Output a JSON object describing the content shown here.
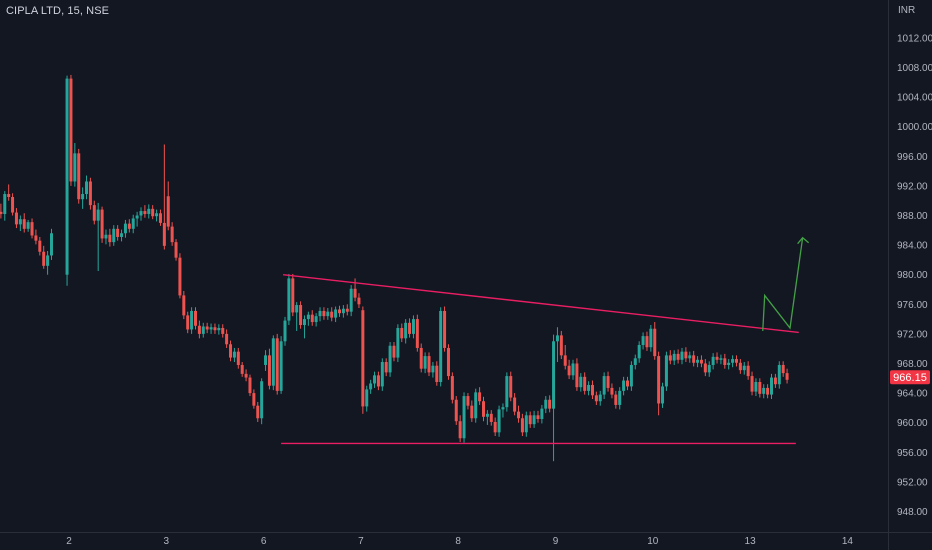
{
  "header": {
    "title": "CIPLA LTD, 15, NSE",
    "currency": "INR"
  },
  "colors": {
    "background": "#131722",
    "up": "#26a69a",
    "down": "#ef5350",
    "trendline": "#e91e63",
    "arrow": "#43a047",
    "axis_text": "#b2b5be",
    "price_tag": "#f23645"
  },
  "last_price": {
    "value": 966.15,
    "label": "966.15"
  },
  "chart_data": {
    "type": "candlestick",
    "title": "CIPLA LTD, 15, NSE",
    "ylim": [
      945.5,
      1015.5
    ],
    "y_ticks": [
      "948.00",
      "952.00",
      "956.00",
      "960.00",
      "964.00",
      "968.00",
      "972.00",
      "976.00",
      "980.00",
      "984.00",
      "988.00",
      "992.00",
      "996.00",
      "1000.00",
      "1004.00",
      "1008.00",
      "1012.00"
    ],
    "x_ticks": [
      "2",
      "3",
      "6",
      "7",
      "8",
      "9",
      "10",
      "13",
      "14"
    ],
    "x_range_sessions": [
      -0.7,
      7.95
    ],
    "bars_per_session": 25,
    "candles": [
      [
        -0.7,
        988.5,
        989.6,
        987.6,
        988.2
      ],
      [
        -0.66,
        988.2,
        991.3,
        987.3,
        990.9
      ],
      [
        -0.62,
        990.9,
        992.2,
        990.0,
        990.5
      ],
      [
        -0.58,
        990.5,
        991.0,
        988.0,
        988.4
      ],
      [
        -0.54,
        988.4,
        989.0,
        986.3,
        986.8
      ],
      [
        -0.5,
        986.8,
        988.0,
        985.9,
        987.5
      ],
      [
        -0.46,
        987.5,
        988.3,
        985.7,
        986.2
      ],
      [
        -0.42,
        986.2,
        987.4,
        985.8,
        987.1
      ],
      [
        -0.38,
        987.1,
        987.6,
        984.9,
        985.3
      ],
      [
        -0.34,
        985.3,
        986.1,
        984.1,
        984.6
      ],
      [
        -0.3,
        984.6,
        985.1,
        982.6,
        983.1
      ],
      [
        -0.26,
        983.1,
        983.9,
        980.8,
        981.2
      ],
      [
        -0.22,
        981.2,
        983.2,
        980.0,
        982.6
      ],
      [
        -0.18,
        982.6,
        986.2,
        982.0,
        985.6
      ],
      [
        -0.02,
        980.0,
        1006.9,
        978.5,
        1006.5
      ],
      [
        0.02,
        1006.5,
        1007.0,
        992.0,
        992.6
      ],
      [
        0.06,
        992.6,
        997.8,
        991.9,
        996.4
      ],
      [
        0.1,
        996.4,
        997.0,
        989.6,
        990.2
      ],
      [
        0.14,
        990.2,
        991.8,
        988.9,
        990.9
      ],
      [
        0.18,
        990.9,
        993.4,
        990.2,
        992.6
      ],
      [
        0.22,
        992.6,
        993.1,
        988.8,
        989.4
      ],
      [
        0.26,
        989.4,
        990.0,
        986.8,
        987.3
      ],
      [
        0.3,
        987.3,
        989.7,
        980.5,
        988.8
      ],
      [
        0.34,
        988.8,
        989.2,
        984.3,
        984.9
      ],
      [
        0.38,
        984.9,
        986.1,
        984.1,
        985.4
      ],
      [
        0.42,
        985.4,
        986.2,
        983.8,
        984.4
      ],
      [
        0.46,
        984.4,
        986.7,
        983.9,
        986.2
      ],
      [
        0.5,
        986.2,
        986.7,
        984.6,
        985.1
      ],
      [
        0.54,
        985.1,
        986.1,
        984.5,
        985.6
      ],
      [
        0.58,
        985.6,
        987.4,
        985.0,
        986.9
      ],
      [
        0.62,
        986.9,
        987.5,
        985.7,
        986.2
      ],
      [
        0.66,
        986.2,
        988.1,
        985.6,
        987.6
      ],
      [
        0.7,
        987.6,
        988.5,
        986.5,
        988.0
      ],
      [
        0.74,
        988.0,
        989.1,
        987.3,
        988.6
      ],
      [
        0.78,
        988.6,
        989.4,
        987.7,
        988.2
      ],
      [
        0.82,
        988.2,
        989.5,
        987.6,
        988.9
      ],
      [
        0.86,
        988.9,
        989.4,
        987.5,
        987.9
      ],
      [
        0.9,
        987.9,
        988.8,
        987.2,
        988.3
      ],
      [
        0.94,
        988.3,
        988.8,
        986.6,
        987.0
      ],
      [
        0.98,
        987.0,
        997.6,
        983.4,
        983.9
      ],
      [
        1.02,
        990.6,
        992.6,
        986.0,
        986.5
      ],
      [
        1.06,
        986.5,
        987.1,
        983.9,
        984.4
      ],
      [
        1.1,
        984.4,
        984.8,
        981.9,
        982.3
      ],
      [
        1.14,
        982.3,
        982.9,
        976.8,
        977.2
      ],
      [
        1.18,
        977.2,
        977.8,
        974.0,
        974.5
      ],
      [
        1.22,
        974.5,
        975.0,
        972.1,
        972.6
      ],
      [
        1.26,
        972.6,
        975.6,
        972.0,
        975.1
      ],
      [
        1.3,
        975.1,
        975.6,
        972.6,
        973.1
      ],
      [
        1.34,
        973.1,
        973.8,
        971.4,
        972.0
      ],
      [
        1.38,
        972.0,
        973.5,
        971.5,
        973.0
      ],
      [
        1.42,
        973.0,
        973.5,
        972.1,
        972.6
      ],
      [
        1.46,
        972.6,
        973.4,
        972.0,
        972.9
      ],
      [
        1.5,
        972.9,
        973.4,
        972.0,
        972.5
      ],
      [
        1.54,
        972.5,
        973.3,
        971.9,
        972.8
      ],
      [
        1.58,
        972.8,
        973.3,
        971.5,
        972.0
      ],
      [
        1.62,
        972.0,
        972.6,
        970.1,
        970.6
      ],
      [
        1.66,
        970.6,
        971.1,
        968.3,
        968.8
      ],
      [
        1.7,
        968.8,
        970.1,
        968.2,
        969.6
      ],
      [
        1.74,
        969.6,
        970.1,
        967.3,
        967.8
      ],
      [
        1.78,
        967.8,
        968.2,
        966.2,
        966.6
      ],
      [
        1.82,
        966.6,
        967.2,
        965.6,
        966.1
      ],
      [
        1.86,
        966.1,
        966.5,
        963.6,
        964.0
      ],
      [
        1.9,
        964.0,
        964.5,
        961.9,
        962.3
      ],
      [
        1.94,
        962.3,
        962.8,
        960.1,
        960.6
      ],
      [
        1.98,
        960.6,
        966.0,
        959.8,
        965.6
      ],
      [
        2.02,
        967.8,
        969.8,
        967.0,
        969.1
      ],
      [
        2.06,
        969.1,
        970.0,
        964.5,
        965.0
      ],
      [
        2.1,
        965.0,
        971.8,
        964.4,
        971.4
      ],
      [
        2.14,
        971.4,
        972.0,
        963.8,
        964.3
      ],
      [
        2.18,
        964.3,
        971.7,
        963.9,
        971.0
      ],
      [
        2.22,
        971.0,
        974.3,
        970.4,
        973.8
      ],
      [
        2.26,
        973.8,
        980.1,
        973.2,
        979.5
      ],
      [
        2.3,
        979.5,
        980.1,
        974.4,
        974.9
      ],
      [
        2.34,
        974.9,
        976.3,
        972.4,
        975.9
      ],
      [
        2.38,
        975.9,
        976.4,
        972.7,
        973.2
      ],
      [
        2.42,
        973.2,
        974.5,
        971.4,
        974.0
      ],
      [
        2.46,
        974.0,
        975.0,
        973.1,
        974.6
      ],
      [
        2.5,
        974.6,
        975.2,
        973.1,
        973.6
      ],
      [
        2.54,
        973.6,
        974.8,
        973.0,
        974.4
      ],
      [
        2.58,
        974.4,
        975.6,
        973.7,
        975.1
      ],
      [
        2.62,
        975.1,
        975.6,
        973.9,
        974.4
      ],
      [
        2.66,
        974.4,
        975.5,
        973.9,
        975.0
      ],
      [
        2.7,
        975.0,
        975.6,
        973.7,
        974.2
      ],
      [
        2.74,
        974.2,
        975.7,
        973.6,
        975.3
      ],
      [
        2.78,
        975.3,
        975.8,
        974.3,
        974.8
      ],
      [
        2.82,
        974.8,
        975.9,
        974.2,
        975.4
      ],
      [
        2.86,
        975.4,
        976.0,
        974.5,
        975.0
      ],
      [
        2.9,
        975.0,
        978.6,
        974.4,
        978.1
      ],
      [
        2.94,
        978.1,
        979.5,
        976.4,
        976.9
      ],
      [
        2.98,
        976.9,
        977.5,
        975.5,
        976.0
      ],
      [
        3.02,
        975.2,
        975.7,
        961.2,
        962.2
      ],
      [
        3.06,
        962.2,
        965.0,
        961.5,
        964.5
      ],
      [
        3.1,
        964.5,
        965.8,
        963.9,
        965.3
      ],
      [
        3.14,
        965.3,
        966.9,
        964.7,
        966.4
      ],
      [
        3.18,
        966.4,
        966.9,
        964.4,
        964.9
      ],
      [
        3.22,
        964.9,
        968.7,
        964.3,
        968.2
      ],
      [
        3.26,
        968.2,
        968.7,
        966.3,
        966.8
      ],
      [
        3.3,
        966.8,
        970.9,
        966.2,
        970.4
      ],
      [
        3.34,
        970.4,
        970.9,
        968.3,
        968.8
      ],
      [
        3.38,
        968.8,
        973.3,
        968.2,
        972.8
      ],
      [
        3.42,
        972.8,
        973.4,
        970.9,
        971.4
      ],
      [
        3.46,
        971.4,
        974.0,
        970.7,
        973.5
      ],
      [
        3.5,
        973.5,
        974.1,
        971.5,
        972.0
      ],
      [
        3.54,
        972.0,
        974.5,
        971.4,
        974.0
      ],
      [
        3.58,
        974.0,
        974.6,
        969.6,
        970.1
      ],
      [
        3.62,
        970.1,
        970.7,
        966.8,
        967.3
      ],
      [
        3.66,
        967.3,
        969.5,
        966.7,
        969.0
      ],
      [
        3.7,
        969.0,
        969.5,
        966.3,
        966.8
      ],
      [
        3.74,
        966.8,
        968.2,
        966.1,
        967.7
      ],
      [
        3.78,
        967.7,
        968.3,
        965.0,
        965.5
      ],
      [
        3.82,
        965.5,
        975.6,
        964.9,
        975.1
      ],
      [
        3.86,
        975.1,
        975.7,
        969.6,
        970.1
      ],
      [
        3.9,
        970.1,
        970.6,
        965.8,
        966.3
      ],
      [
        3.94,
        966.3,
        966.8,
        962.6,
        963.1
      ],
      [
        3.98,
        963.1,
        963.6,
        959.7,
        960.2
      ],
      [
        4.02,
        960.2,
        961.0,
        957.4,
        957.9
      ],
      [
        4.06,
        957.9,
        964.1,
        957.3,
        963.6
      ],
      [
        4.1,
        963.6,
        964.0,
        961.8,
        962.3
      ],
      [
        4.14,
        962.3,
        963.0,
        960.1,
        960.6
      ],
      [
        4.18,
        960.6,
        964.6,
        960.0,
        964.1
      ],
      [
        4.22,
        964.1,
        964.8,
        962.4,
        962.9
      ],
      [
        4.26,
        962.9,
        963.5,
        960.2,
        960.8
      ],
      [
        4.3,
        960.8,
        961.7,
        959.7,
        961.2
      ],
      [
        4.34,
        961.2,
        961.7,
        959.6,
        960.1
      ],
      [
        4.38,
        960.1,
        960.7,
        958.2,
        958.7
      ],
      [
        4.42,
        958.7,
        962.3,
        958.1,
        961.8
      ],
      [
        4.46,
        961.8,
        962.6,
        960.7,
        962.1
      ],
      [
        4.5,
        962.1,
        966.8,
        961.5,
        966.3
      ],
      [
        4.54,
        966.3,
        966.9,
        962.9,
        963.4
      ],
      [
        4.58,
        963.4,
        964.0,
        961.0,
        961.5
      ],
      [
        4.62,
        961.5,
        962.3,
        960.0,
        960.6
      ],
      [
        4.66,
        960.6,
        961.2,
        958.2,
        958.7
      ],
      [
        4.7,
        958.7,
        961.5,
        958.1,
        961.0
      ],
      [
        4.74,
        961.0,
        961.5,
        959.3,
        959.8
      ],
      [
        4.78,
        959.8,
        961.6,
        959.3,
        961.0
      ],
      [
        4.82,
        961.0,
        961.6,
        960.0,
        960.5
      ],
      [
        4.86,
        960.5,
        962.4,
        959.9,
        961.9
      ],
      [
        4.9,
        961.9,
        963.6,
        961.3,
        963.1
      ],
      [
        4.94,
        963.1,
        963.7,
        961.4,
        961.9
      ],
      [
        4.98,
        961.9,
        971.9,
        954.8,
        971.0
      ],
      [
        5.02,
        971.0,
        972.9,
        968.2,
        971.8
      ],
      [
        5.06,
        971.8,
        972.4,
        968.6,
        969.1
      ],
      [
        5.1,
        969.1,
        970.5,
        967.2,
        967.7
      ],
      [
        5.14,
        967.7,
        968.5,
        965.9,
        966.4
      ],
      [
        5.18,
        966.4,
        968.5,
        965.8,
        968.0
      ],
      [
        5.22,
        968.0,
        968.7,
        964.3,
        964.8
      ],
      [
        5.26,
        964.8,
        966.7,
        964.2,
        966.2
      ],
      [
        5.3,
        966.2,
        966.8,
        963.8,
        964.3
      ],
      [
        5.34,
        964.3,
        965.6,
        963.7,
        965.1
      ],
      [
        5.38,
        965.1,
        965.7,
        963.2,
        963.7
      ],
      [
        5.42,
        963.7,
        964.2,
        962.4,
        962.9
      ],
      [
        5.46,
        962.9,
        964.3,
        962.3,
        963.8
      ],
      [
        5.5,
        963.8,
        966.8,
        963.2,
        966.3
      ],
      [
        5.54,
        966.3,
        966.9,
        964.2,
        964.7
      ],
      [
        5.58,
        964.7,
        965.3,
        963.3,
        963.8
      ],
      [
        5.62,
        963.8,
        964.3,
        961.9,
        962.4
      ],
      [
        5.66,
        962.4,
        964.8,
        961.8,
        964.3
      ],
      [
        5.7,
        964.3,
        966.2,
        963.7,
        965.7
      ],
      [
        5.74,
        965.7,
        966.2,
        964.4,
        964.9
      ],
      [
        5.78,
        964.9,
        968.3,
        964.3,
        967.8
      ],
      [
        5.82,
        967.8,
        969.2,
        967.2,
        968.7
      ],
      [
        5.86,
        968.7,
        971.0,
        968.1,
        970.5
      ],
      [
        5.9,
        970.5,
        972.2,
        969.9,
        971.7
      ],
      [
        5.94,
        971.7,
        972.3,
        969.7,
        970.2
      ],
      [
        5.98,
        970.2,
        973.2,
        969.6,
        972.7
      ],
      [
        6.02,
        972.7,
        973.6,
        968.5,
        969.0
      ],
      [
        6.06,
        969.0,
        969.6,
        961.0,
        962.6
      ],
      [
        6.1,
        962.6,
        965.4,
        962.0,
        964.9
      ],
      [
        6.14,
        964.9,
        969.6,
        964.3,
        969.1
      ],
      [
        6.18,
        969.1,
        969.8,
        967.9,
        968.4
      ],
      [
        6.22,
        968.4,
        969.8,
        967.8,
        969.3
      ],
      [
        6.26,
        969.3,
        969.9,
        968.0,
        968.5
      ],
      [
        6.3,
        968.5,
        970.1,
        967.9,
        969.6
      ],
      [
        6.34,
        969.6,
        970.2,
        968.2,
        968.7
      ],
      [
        6.38,
        968.7,
        969.6,
        968.1,
        969.1
      ],
      [
        6.42,
        969.1,
        969.7,
        967.6,
        968.1
      ],
      [
        6.46,
        968.1,
        969.0,
        967.5,
        968.5
      ],
      [
        6.5,
        968.5,
        969.1,
        967.5,
        968.0
      ],
      [
        6.54,
        968.0,
        968.6,
        966.3,
        966.8
      ],
      [
        6.58,
        966.8,
        968.3,
        966.2,
        967.8
      ],
      [
        6.62,
        967.8,
        969.4,
        967.2,
        968.9
      ],
      [
        6.66,
        968.9,
        969.5,
        968.0,
        968.5
      ],
      [
        6.7,
        968.5,
        969.2,
        967.9,
        968.7
      ],
      [
        6.74,
        968.7,
        969.3,
        967.3,
        967.8
      ],
      [
        6.78,
        967.8,
        968.6,
        967.2,
        968.1
      ],
      [
        6.82,
        968.1,
        969.1,
        967.5,
        968.6
      ],
      [
        6.86,
        968.6,
        969.1,
        967.6,
        968.1
      ],
      [
        6.9,
        968.1,
        968.6,
        966.6,
        967.1
      ],
      [
        6.94,
        967.1,
        968.2,
        966.5,
        967.7
      ],
      [
        6.98,
        967.7,
        968.3,
        965.8,
        966.3
      ],
      [
        7.02,
        966.3,
        966.9,
        963.7,
        964.2
      ],
      [
        7.06,
        964.2,
        966.0,
        963.6,
        965.5
      ],
      [
        7.1,
        965.5,
        966.0,
        963.4,
        963.9
      ],
      [
        7.14,
        963.9,
        965.2,
        963.3,
        964.7
      ],
      [
        7.18,
        964.7,
        965.2,
        963.3,
        963.8
      ],
      [
        7.22,
        963.8,
        966.6,
        963.2,
        966.1
      ],
      [
        7.26,
        966.1,
        966.6,
        964.7,
        965.2
      ],
      [
        7.3,
        965.2,
        968.3,
        964.6,
        967.8
      ],
      [
        7.34,
        967.8,
        968.3,
        966.2,
        966.7
      ],
      [
        7.38,
        966.7,
        967.3,
        965.3,
        965.8
      ]
    ],
    "annotations": {
      "descending_trendline": {
        "start": [
          2.2,
          980.0
        ],
        "end": [
          7.5,
          972.2
        ]
      },
      "horizontal_support": {
        "start": [
          2.18,
          957.2
        ],
        "end": [
          7.47,
          957.2
        ]
      },
      "projection_arrow": [
        [
          7.13,
          972.4
        ],
        [
          7.15,
          977.2
        ],
        [
          7.41,
          972.8
        ],
        [
          7.54,
          985.0
        ]
      ]
    }
  }
}
